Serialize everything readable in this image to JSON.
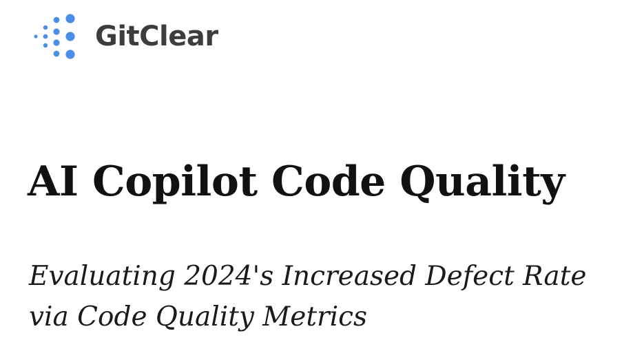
{
  "brand": {
    "name": "GitClear",
    "logo_icon": "dot-cluster-logo-icon",
    "dot_color": "#4a8fe7",
    "text_color": "#3d3d3d"
  },
  "document": {
    "title": "AI Copilot Code Quality",
    "subtitle_line_1": "Evaluating 2024's Increased Defect Rate",
    "subtitle_line_2": "via Code Quality Metrics"
  }
}
